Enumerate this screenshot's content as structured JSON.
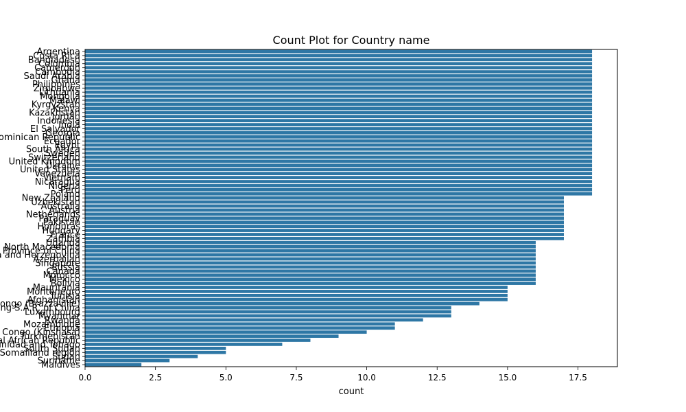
{
  "colors": {
    "bar": "#2e77a5",
    "axis": "#000000",
    "background": "#ffffff"
  },
  "chart_data": {
    "type": "bar",
    "orientation": "horizontal",
    "title": "Count Plot for Country name",
    "xlabel": "count",
    "ylabel": "",
    "xlim": [
      0,
      18.9
    ],
    "xticks": [
      0,
      2.5,
      5,
      7.5,
      10,
      12.5,
      15,
      17.5
    ],
    "xtick_labels": [
      "0.0",
      "2.5",
      "5.0",
      "7.5",
      "10.0",
      "12.5",
      "15.0",
      "17.5"
    ],
    "grid": false,
    "legend": "none",
    "categories": [
      "Argentina",
      "Costa Rica",
      "Bangladesh",
      "Colombia",
      "Cameroon",
      "Cambodia",
      "Saudi Arabia",
      "Ghana",
      "Philippines",
      "Zimbabwe",
      "Lithuania",
      "Mongolia",
      "Malawi",
      "Kyrgyzstan",
      "Kenya",
      "Kazakhstan",
      "Jordan",
      "Indonesia",
      "India",
      "El Salvador",
      "Georgia",
      "Dominican Republic",
      "Ecuador",
      "Egypt",
      "South Africa",
      "Sweden",
      "Switzerland",
      "United Kingdom",
      "Ukraine",
      "United States",
      "Venezuela",
      "Vietnam",
      "Nicaragua",
      "Nigeria",
      "Peru",
      "Poland",
      "New Zealand",
      "Uzbekistan",
      "Australia",
      "Austria",
      "Netherlands",
      "Paraguay",
      "Pakistan",
      "Honduras",
      "Hungary",
      "France",
      "Zambia",
      "Uganda",
      "North Macedonia",
      "Taiwan Province of China",
      "Bosnia and Herzegovina",
      "Azerbaijan",
      "Singapore",
      "Russia",
      "Canada",
      "Morocco",
      "Mexico",
      "Bolivia",
      "Mauritania",
      "Montenegro",
      "Tunisia",
      "Afghanistan",
      "Congo (Brazzaville)",
      "Hong Kong S.A.R. of China",
      "Luxembourg",
      "Myanmar",
      "Rwanda",
      "Mozambique",
      "Ethiopia",
      "Congo (Kinshasa)",
      "Turkmenistan",
      "Central African Republic",
      "Trinidad and Tobago",
      "South Sudan",
      "Somaliland region",
      "Sudan",
      "Suriname",
      "Maldives"
    ],
    "values": [
      18,
      18,
      18,
      18,
      18,
      18,
      18,
      18,
      18,
      18,
      18,
      18,
      18,
      18,
      18,
      18,
      18,
      18,
      18,
      18,
      18,
      18,
      18,
      18,
      18,
      18,
      18,
      18,
      18,
      18,
      18,
      18,
      18,
      18,
      18,
      18,
      17,
      17,
      17,
      17,
      17,
      17,
      17,
      17,
      17,
      17,
      17,
      16,
      16,
      16,
      16,
      16,
      16,
      16,
      16,
      16,
      16,
      16,
      15,
      15,
      15,
      15,
      14,
      13,
      13,
      13,
      12,
      11,
      11,
      10,
      9,
      8,
      7,
      5,
      5,
      4,
      3,
      2
    ]
  }
}
